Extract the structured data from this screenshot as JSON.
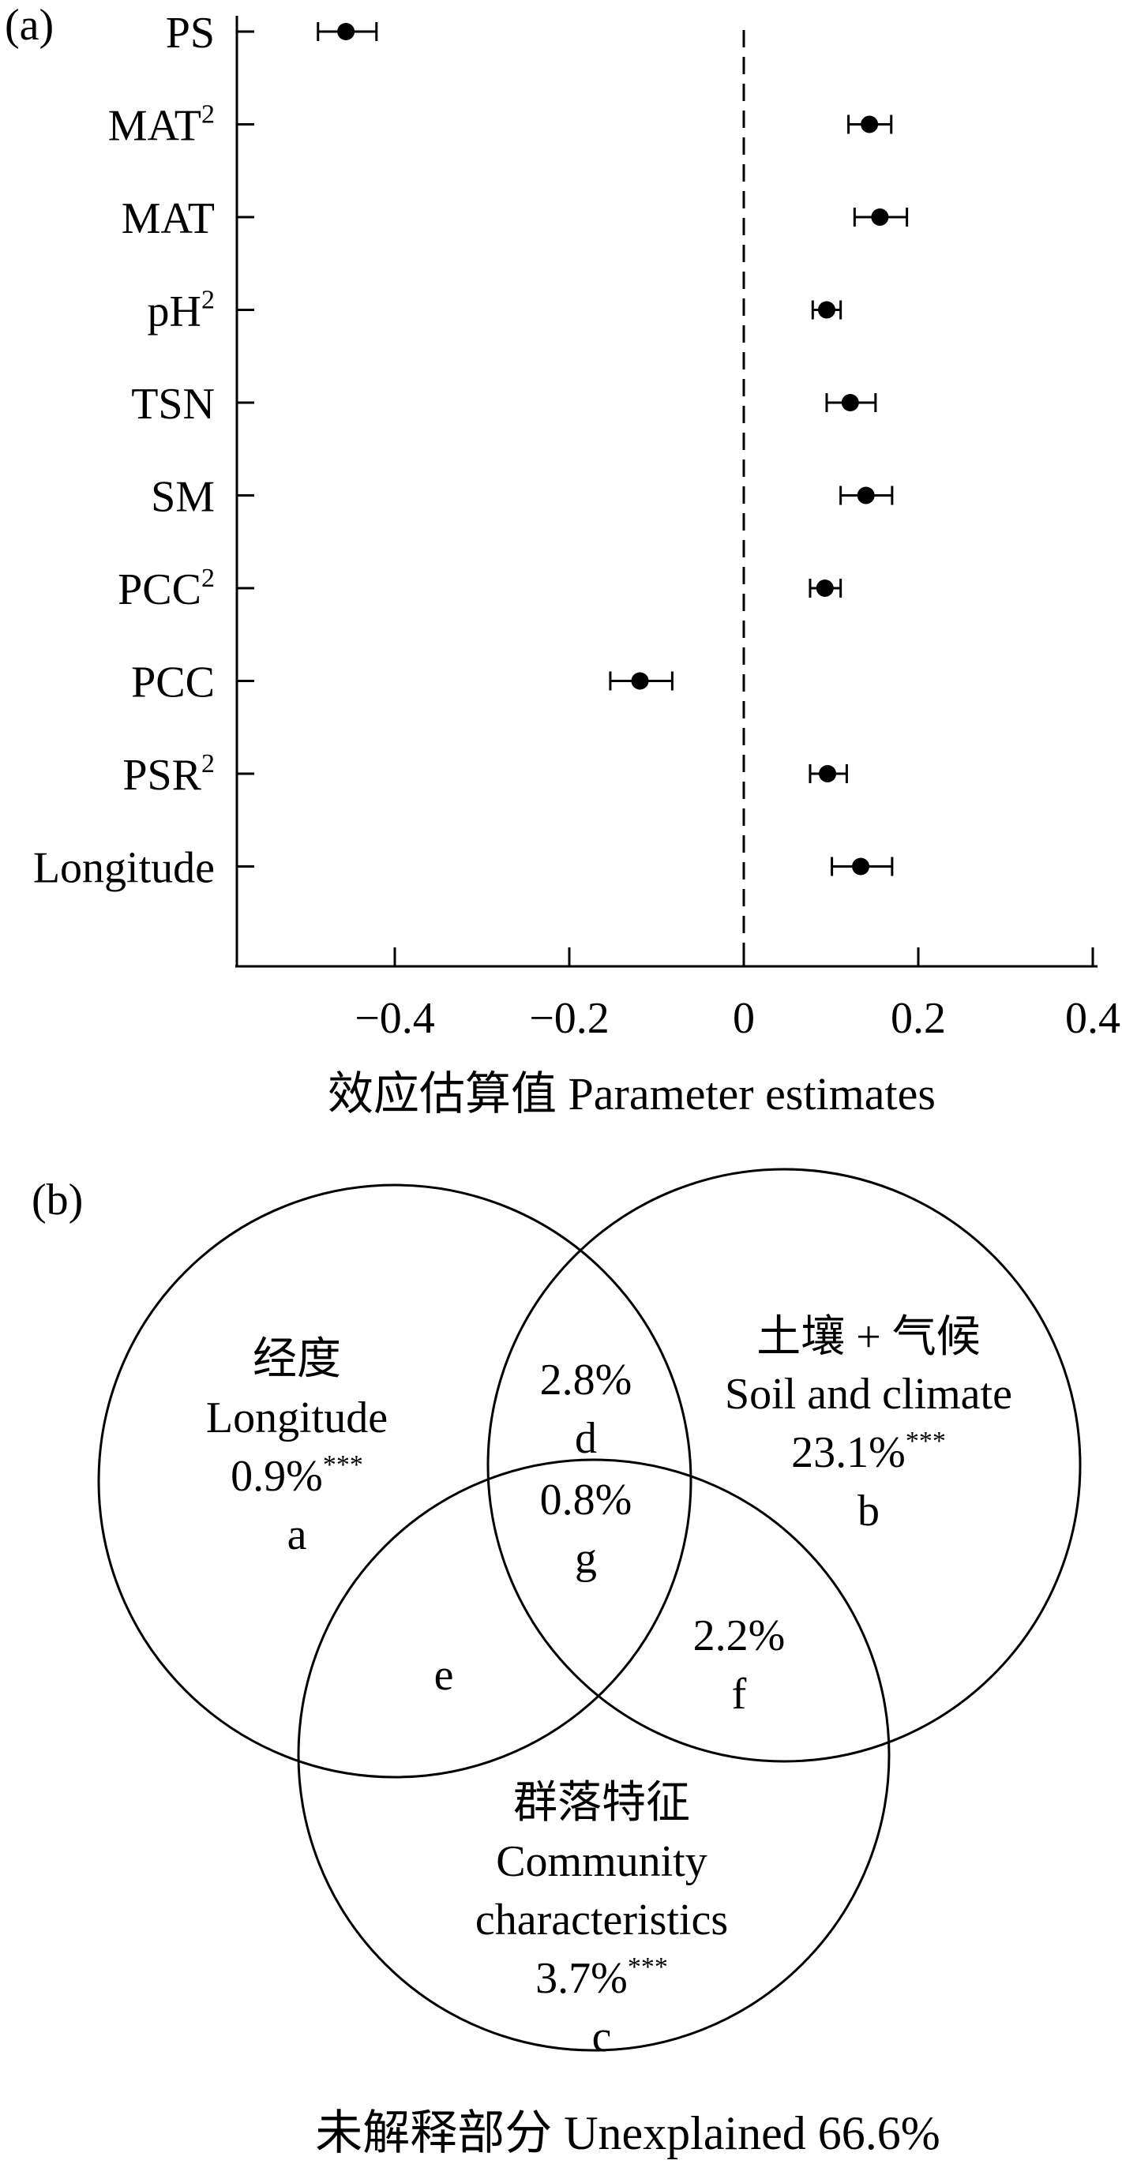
{
  "panel_a": {
    "label": "(a)",
    "xlabel": "效应估算值 Parameter estimates"
  },
  "panel_b": {
    "label": "(b)",
    "footer": "未解释部分 Unexplained 66.6%",
    "circle_a": {
      "zh": "经度",
      "en": "Longitude",
      "value": "0.9%",
      "sig": "***",
      "letter": "a"
    },
    "circle_b": {
      "zh": "土壤 + 气候",
      "en": "Soil and climate",
      "value": "23.1%",
      "sig": "***",
      "letter": "b"
    },
    "circle_c": {
      "zh": "群落特征",
      "en_line1": "Community",
      "en_line2": "characteristics",
      "value": "3.7%",
      "sig": "***",
      "letter": "c"
    },
    "region_d": {
      "value": "2.8%",
      "letter": "d"
    },
    "region_e": {
      "letter": "e"
    },
    "region_f": {
      "value": "2.2%",
      "letter": "f"
    },
    "region_g": {
      "value": "0.8%",
      "letter": "g"
    }
  },
  "chart_data": [
    {
      "type": "scatter",
      "subtype": "coefficient-plot-with-error-bars",
      "xlabel": "效应估算值 Parameter estimates",
      "xlim": [
        -0.55,
        0.4
      ],
      "xticks": [
        -0.4,
        -0.2,
        0,
        0.2,
        0.4
      ],
      "xtick_labels": [
        "−0.4",
        "−0.2",
        "0",
        "0.2",
        "0.4"
      ],
      "reference_line": {
        "x": 0,
        "style": "dashed"
      },
      "grid": false,
      "points": [
        {
          "label": "PS",
          "base": "PS",
          "sup": "",
          "estimate": -0.456,
          "lower": -0.488,
          "upper": -0.421
        },
        {
          "label": "MAT2",
          "base": "MAT",
          "sup": "2",
          "estimate": 0.144,
          "lower": 0.12,
          "upper": 0.169
        },
        {
          "label": "MAT",
          "base": "MAT",
          "sup": "",
          "estimate": 0.156,
          "lower": 0.127,
          "upper": 0.187
        },
        {
          "label": "pH2",
          "base": "pH",
          "sup": "2",
          "estimate": 0.095,
          "lower": 0.079,
          "upper": 0.111
        },
        {
          "label": "TSN",
          "base": "TSN",
          "sup": "",
          "estimate": 0.122,
          "lower": 0.095,
          "upper": 0.151
        },
        {
          "label": "SM",
          "base": "SM",
          "sup": "",
          "estimate": 0.14,
          "lower": 0.111,
          "upper": 0.17
        },
        {
          "label": "PCC2",
          "base": "PCC",
          "sup": "2",
          "estimate": 0.093,
          "lower": 0.076,
          "upper": 0.111
        },
        {
          "label": "PCC",
          "base": "PCC",
          "sup": "",
          "estimate": -0.119,
          "lower": -0.153,
          "upper": -0.082
        },
        {
          "label": "PSR2",
          "base": "PSR",
          "sup": "2",
          "estimate": 0.096,
          "lower": 0.076,
          "upper": 0.118
        },
        {
          "label": "Longitude",
          "base": "Longitude",
          "sup": "",
          "estimate": 0.134,
          "lower": 0.101,
          "upper": 0.17
        }
      ]
    },
    {
      "type": "venn",
      "sets": [
        {
          "name": "Longitude",
          "value": 0.9,
          "unit": "%",
          "significance": "***",
          "letter": "a"
        },
        {
          "name": "Soil and climate",
          "value": 23.1,
          "unit": "%",
          "significance": "***",
          "letter": "b"
        },
        {
          "name": "Community characteristics",
          "value": 3.7,
          "unit": "%",
          "significance": "***",
          "letter": "c"
        }
      ],
      "intersections": [
        {
          "sets": [
            "a",
            "b"
          ],
          "value": 2.8,
          "unit": "%",
          "letter": "d"
        },
        {
          "sets": [
            "a",
            "c"
          ],
          "letter": "e"
        },
        {
          "sets": [
            "b",
            "c"
          ],
          "value": 2.2,
          "unit": "%",
          "letter": "f"
        },
        {
          "sets": [
            "a",
            "b",
            "c"
          ],
          "value": 0.8,
          "unit": "%",
          "letter": "g"
        }
      ],
      "unexplained": {
        "value": 66.6,
        "unit": "%"
      }
    }
  ]
}
